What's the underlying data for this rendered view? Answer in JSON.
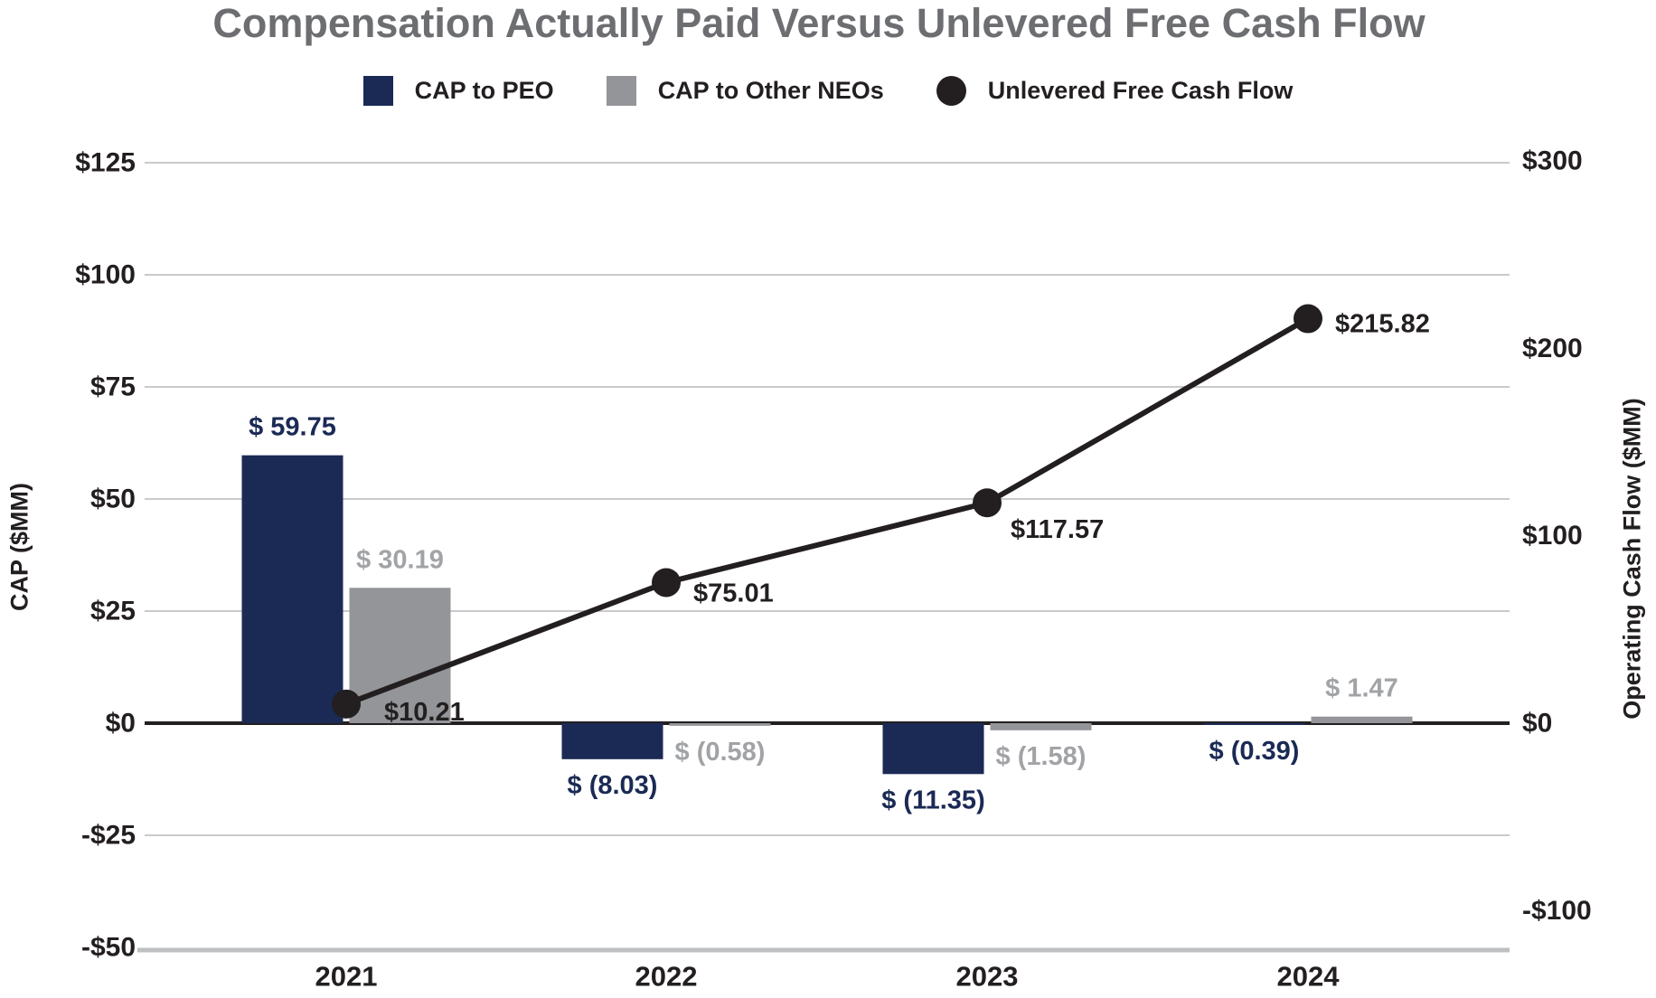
{
  "title": "Compensation Actually Paid Versus Unlevered Free Cash Flow",
  "legend": {
    "items": [
      {
        "label": "CAP to PEO",
        "swatch": "square",
        "color_key": "bar_peo"
      },
      {
        "label": "CAP to Other NEOs",
        "swatch": "square",
        "color_key": "bar_neo"
      },
      {
        "label": "Unlevered Free Cash Flow",
        "swatch": "circle",
        "color_key": "line"
      }
    ]
  },
  "left_axis": {
    "title": "CAP ($MM)",
    "tick_labels": [
      "$125",
      "$100",
      "$75",
      "$50",
      "$25",
      "$0",
      "-$25",
      "-$50"
    ],
    "tick_values": [
      125,
      100,
      75,
      50,
      25,
      0,
      -25,
      -50
    ]
  },
  "right_axis": {
    "title": "Operating Cash Flow ($MM)",
    "tick_labels": [
      "$300",
      "$200",
      "$100",
      "$0",
      "-$100"
    ],
    "tick_values": [
      300,
      200,
      100,
      0,
      -100
    ]
  },
  "chart_data": {
    "type": "combo-bar-line",
    "categories": [
      "2021",
      "2022",
      "2023",
      "2024"
    ],
    "series": [
      {
        "name": "CAP to PEO",
        "type": "bar",
        "axis": "left",
        "color_key": "bar_peo",
        "values": [
          59.75,
          -8.03,
          -11.35,
          -0.39
        ],
        "labels": [
          "$ 59.75",
          "$ (8.03)",
          "$ (11.35)",
          "$ (0.39)"
        ]
      },
      {
        "name": "CAP to Other NEOs",
        "type": "bar",
        "axis": "left",
        "color_key": "bar_neo",
        "values": [
          30.19,
          -0.58,
          -1.58,
          1.47
        ],
        "labels": [
          "$ 30.19",
          "$ (0.58)",
          "$ (1.58)",
          "$ 1.47"
        ]
      },
      {
        "name": "Unlevered Free Cash Flow",
        "type": "line",
        "axis": "right",
        "color_key": "line",
        "values": [
          10.21,
          75.01,
          117.57,
          215.82
        ],
        "labels": [
          "$10.21",
          "$75.01",
          "$117.57",
          "$215.82"
        ],
        "label_offsets": [
          {
            "dx": 42,
            "dy": 9
          },
          {
            "dx": 30,
            "dy": 12
          },
          {
            "dx": 26,
            "dy": 30
          },
          {
            "dx": 30,
            "dy": 6
          }
        ]
      }
    ],
    "left_ylim": [
      -50,
      125
    ],
    "right_ylim": [
      -100,
      300
    ],
    "grid": true,
    "legend_position": "top"
  },
  "colors": {
    "bar_peo": "#1B2A55",
    "bar_neo": "#939598",
    "line": "#231F20",
    "title": "#6D6E71",
    "tick": "#231F20",
    "peo_label": "#1B2A55",
    "neo_label": "#A1A3A6",
    "line_label": "#231F20",
    "grid": "#C9CACC",
    "zero_line": "#231F20",
    "axis_line": "#BDBFC1"
  }
}
